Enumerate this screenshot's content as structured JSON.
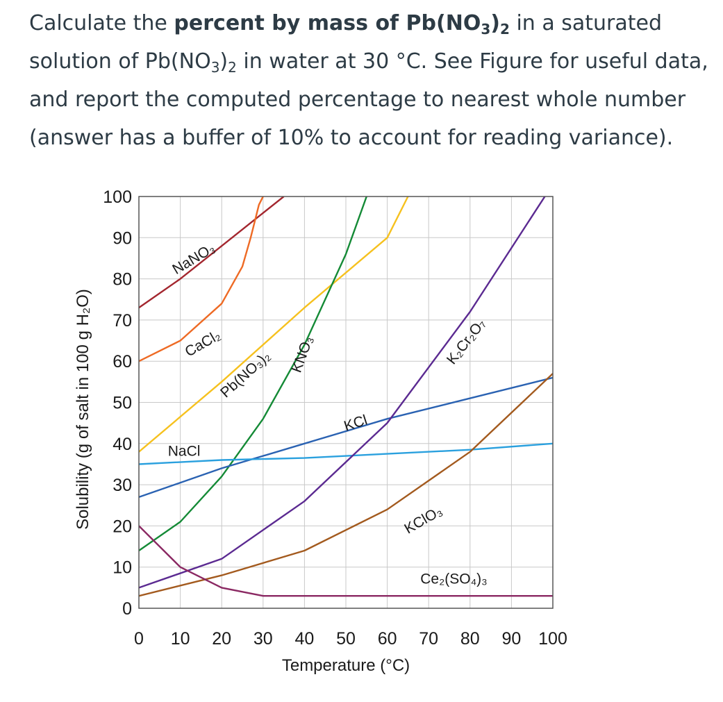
{
  "question": {
    "p1": "Calculate the ",
    "bold": "percent by mass of Pb(NO",
    "bold_sub1": "3",
    "bold_close": ")",
    "bold_sub2": "2",
    "p2": " in a saturated solution of Pb(NO",
    "p2_sub1": "3",
    "p2_close": ")",
    "p2_sub2": "2",
    "p3": " in water at 30 °C. See Figure for useful data, and report the computed percentage to nearest whole number (answer has a buffer of 10% to account for reading variance)."
  },
  "chart_data": {
    "type": "line",
    "xlabel": "Temperature (°C)",
    "ylabel": "Solubility (g of salt in 100 g H₂O)",
    "xlim": [
      0,
      100
    ],
    "ylim": [
      0,
      100
    ],
    "x_ticks": [
      "0",
      "10",
      "20",
      "30",
      "40",
      "50",
      "60",
      "70",
      "80",
      "90",
      "100"
    ],
    "y_ticks": [
      "0",
      "10",
      "20",
      "30",
      "40",
      "50",
      "60",
      "70",
      "80",
      "90",
      "100"
    ],
    "grid": true,
    "series": [
      {
        "name": "NaNO3",
        "label": "NaNO₃",
        "color": "#a3262e",
        "x": [
          0,
          10,
          20,
          30,
          35
        ],
        "y": [
          73,
          80,
          88,
          96,
          100
        ]
      },
      {
        "name": "CaCl2",
        "label": "CaCl₂",
        "color": "#ee6a24",
        "x": [
          0,
          10,
          20,
          25,
          27,
          28,
          29,
          30,
          31,
          32.5
        ],
        "y": [
          60,
          65,
          74,
          83,
          90,
          94,
          98,
          100,
          103,
          106
        ]
      },
      {
        "name": "Pb(NO3)2",
        "label": "Pb(NO₃)₂",
        "color": "#f6c11e",
        "x": [
          0,
          20,
          40,
          60,
          65
        ],
        "y": [
          38,
          55,
          73,
          90,
          100
        ]
      },
      {
        "name": "KNO3",
        "label": "KNO₃",
        "color": "#148a36",
        "x": [
          0,
          10,
          20,
          30,
          40,
          50,
          55
        ],
        "y": [
          14,
          21,
          32,
          46,
          64,
          86,
          100
        ]
      },
      {
        "name": "KCl",
        "label": "KCl",
        "color": "#2a62b2",
        "x": [
          0,
          20,
          40,
          60,
          80,
          100
        ],
        "y": [
          27,
          34,
          40,
          46,
          51,
          56
        ]
      },
      {
        "name": "NaCl",
        "label": "NaCl",
        "color": "#2aa0de",
        "x": [
          0,
          20,
          40,
          60,
          80,
          100
        ],
        "y": [
          35,
          36,
          36.5,
          37.5,
          38.5,
          40
        ]
      },
      {
        "name": "K2Cr2O7",
        "label": "K₂Cr₂O₇",
        "color": "#5b2a91",
        "x": [
          0,
          20,
          40,
          60,
          80,
          100
        ],
        "y": [
          5,
          12,
          26,
          45,
          72,
          103
        ]
      },
      {
        "name": "KClO3",
        "label": "KClO₃",
        "color": "#a35a1e",
        "x": [
          0,
          20,
          40,
          60,
          80,
          100
        ],
        "y": [
          3,
          8,
          14,
          24,
          38,
          57
        ]
      },
      {
        "name": "Ce2(SO4)3",
        "label": "Ce₂(SO₄)₃",
        "color": "#8a2862",
        "x": [
          0,
          10,
          20,
          30,
          50,
          100
        ],
        "y": [
          20,
          10,
          5,
          3,
          3,
          3
        ]
      }
    ]
  }
}
